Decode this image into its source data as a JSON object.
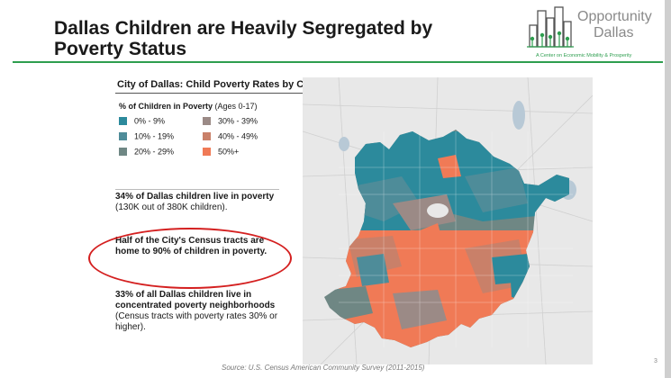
{
  "slide": {
    "title": "Dallas Children are Heavily Segregated by Poverty Status",
    "page_number": "3",
    "accent_color": "#2e9e4f"
  },
  "logo": {
    "name_line1": "Opportunity",
    "name_line2": "Dallas",
    "tagline": "A Center on Economic Mobility & Prosperity",
    "icon": "city-skyline-icon"
  },
  "map": {
    "title": "City of Dallas: Child Poverty Rates by Census Tract",
    "legend": {
      "title": "% of Children in Poverty",
      "subtitle": "(Ages 0-17)",
      "items": [
        {
          "label": "0% - 9%",
          "color": "#2c8a9c"
        },
        {
          "label": "10% - 19%",
          "color": "#4e8c99"
        },
        {
          "label": "20% - 29%",
          "color": "#6f8784"
        },
        {
          "label": "30% - 39%",
          "color": "#9b8a86"
        },
        {
          "label": "40% - 49%",
          "color": "#c98069"
        },
        {
          "label": "50%+",
          "color": "#f07a56"
        }
      ]
    }
  },
  "stats": {
    "stat1_bold": "34% of Dallas children live in poverty",
    "stat1_normal": " (130K out of 380K children).",
    "stat2_bold": "Half of the City's Census tracts are home to 90% of children in poverty.",
    "stat3_bold": "33% of all Dallas children live in concentrated poverty neighborhoods",
    "stat3_normal": " (Census tracts with poverty rates 30% or higher)."
  },
  "source": "Source: U.S. Census American Community Survey (2011-2015)"
}
